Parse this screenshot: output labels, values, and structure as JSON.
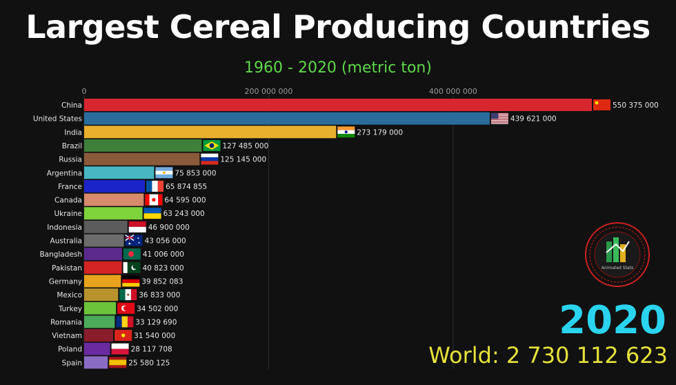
{
  "title": "Largest Cereal Producing Countries",
  "subtitle": "1960 - 2020 (metric ton)",
  "year": "2020",
  "world_total": "World: 2 730 112 623",
  "logo": {
    "icon": "animated-stats-logo",
    "text": "Animated Stats",
    "ring_color": "#e02020",
    "inner_color": "#1a8a3a"
  },
  "chart_data": {
    "type": "bar",
    "orientation": "horizontal",
    "title": "Largest Cereal Producing Countries",
    "subtitle": "1960 - 2020 (metric ton)",
    "x_ticks": [
      0,
      200000000,
      400000000
    ],
    "x_tick_labels": [
      "0",
      "200 000 000",
      "400 000 000"
    ],
    "xlim": [
      0,
      550375000
    ],
    "grid": true,
    "categories": [
      "China",
      "United States",
      "India",
      "Brazil",
      "Russia",
      "Argentina",
      "France",
      "Canada",
      "Ukraine",
      "Indonesia",
      "Australia",
      "Bangladesh",
      "Pakistan",
      "Germany",
      "Mexico",
      "Turkey",
      "Romania",
      "Vietnam",
      "Poland",
      "Spain"
    ],
    "values": [
      550375000,
      439621000,
      273179000,
      127485000,
      125145000,
      75853000,
      65874855,
      64595000,
      63243000,
      46900000,
      43056000,
      41006000,
      40823000,
      39852083,
      36833000,
      34502000,
      33129690,
      31540000,
      28117708,
      25580125
    ],
    "value_labels": [
      "550 375 000",
      "439 621 000",
      "273 179 000",
      "127 485 000",
      "125 145 000",
      "75 853 000",
      "65 874 855",
      "64 595 000",
      "63 243 000",
      "46 900 000",
      "43 056 000",
      "41 006 000",
      "40 823 000",
      "39 852 083",
      "36 833 000",
      "34 502 000",
      "33 129 690",
      "31 540 000",
      "28 117 708",
      "25 580 125"
    ],
    "colors": [
      "#d8262e",
      "#2a6c9c",
      "#e8b02c",
      "#3e7f3a",
      "#8a5a3a",
      "#49b6c4",
      "#1b24c8",
      "#d88a6c",
      "#7ed23a",
      "#5c5c5c",
      "#6c6c6c",
      "#5b2a8c",
      "#d42424",
      "#e8a21c",
      "#b8922c",
      "#6cc43a",
      "#4caa5a",
      "#8a1c2c",
      "#6a2aa0",
      "#8a6cc4"
    ],
    "flags": [
      "china-flag",
      "united-states-flag",
      "india-flag",
      "brazil-flag",
      "russia-flag",
      "argentina-flag",
      "france-flag",
      "canada-flag",
      "ukraine-flag",
      "indonesia-flag",
      "australia-flag",
      "bangladesh-flag",
      "pakistan-flag",
      "germany-flag",
      "mexico-flag",
      "turkey-flag",
      "romania-flag",
      "vietnam-flag",
      "poland-flag",
      "spain-flag"
    ]
  }
}
